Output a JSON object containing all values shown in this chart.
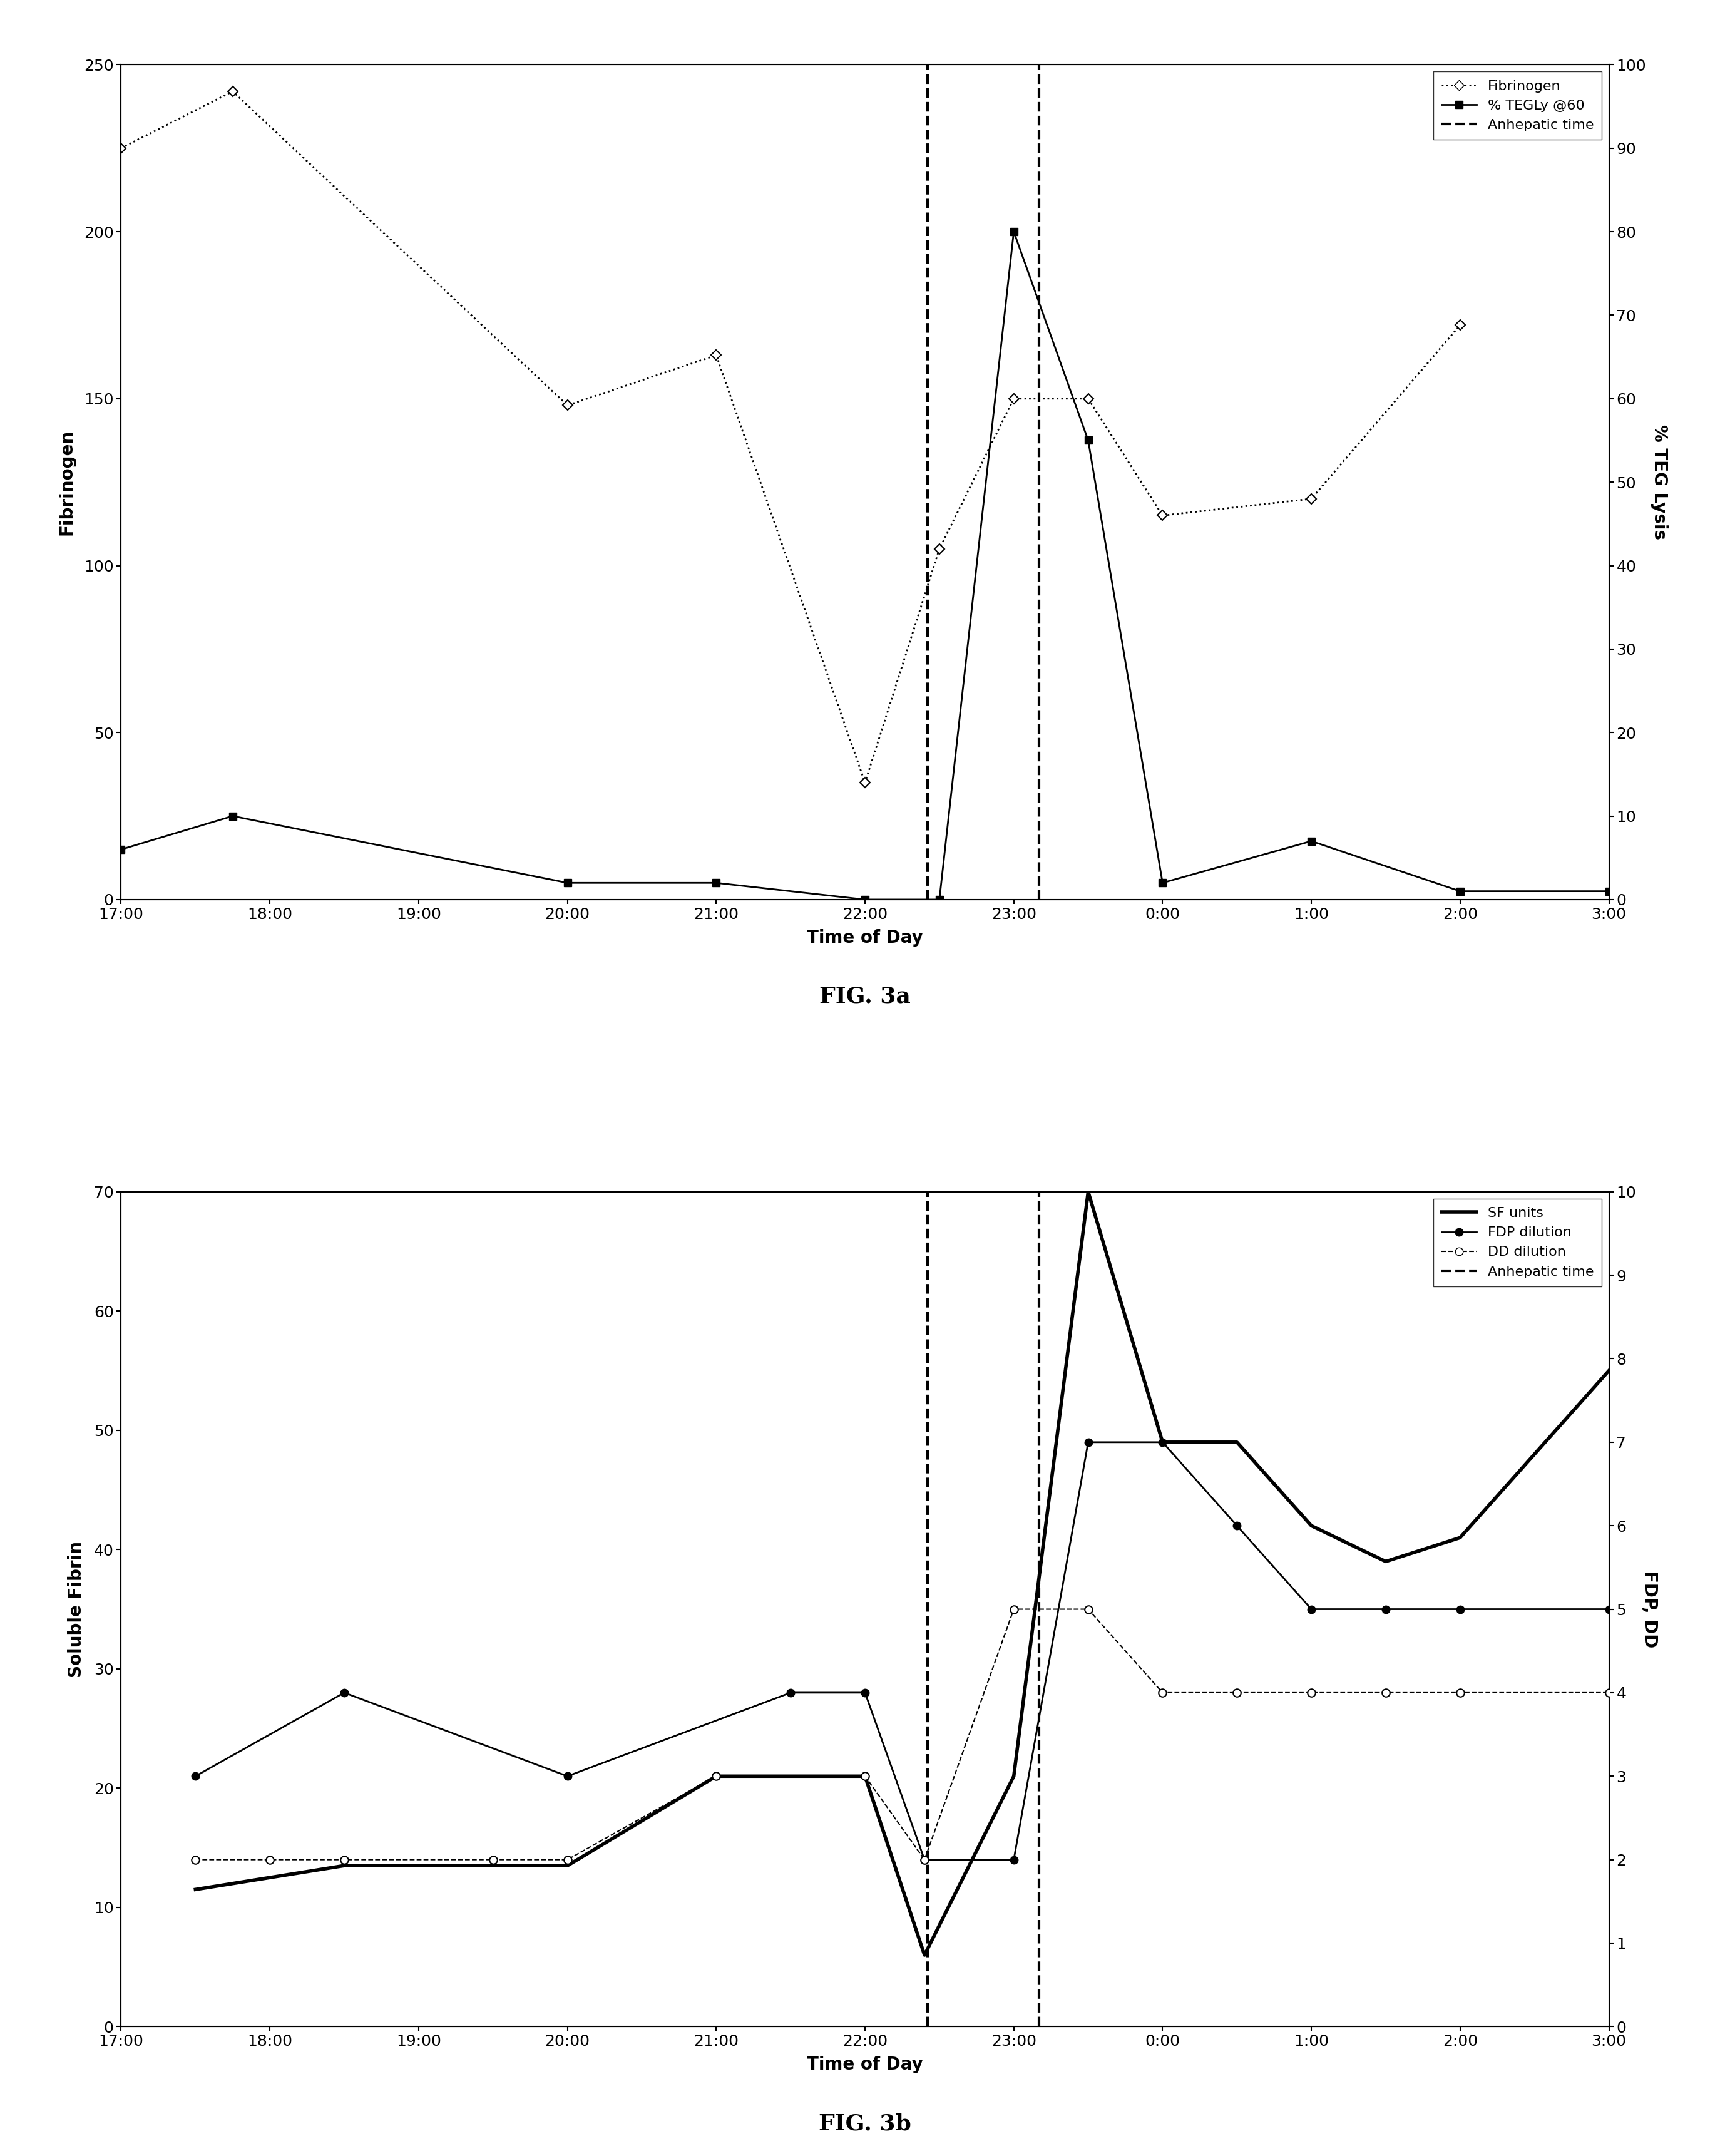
{
  "fig3a": {
    "xlabel": "Time of Day",
    "ylabel_left": "Fibrinogen",
    "ylabel_right": "% TEG Lysis",
    "ylim_left": [
      0,
      250
    ],
    "ylim_right": [
      0,
      100
    ],
    "yticks_left": [
      0,
      50,
      100,
      150,
      200,
      250
    ],
    "yticks_right": [
      0,
      10,
      20,
      30,
      40,
      50,
      60,
      70,
      80,
      90,
      100
    ],
    "x_times": [
      17.0,
      17.75,
      18.5,
      20.0,
      21.0,
      22.0,
      22.5,
      23.0,
      23.5,
      24.0,
      25.0,
      26.0,
      27.0
    ],
    "fibrinogen": [
      225,
      242,
      null,
      148,
      163,
      35,
      105,
      150,
      150,
      115,
      120,
      172,
      null
    ],
    "teg_lysis": [
      6,
      10,
      null,
      2,
      2,
      0,
      0,
      80,
      55,
      2,
      7,
      1,
      1
    ],
    "anhepatic_times": [
      22.42,
      23.17
    ],
    "xtick_labels": [
      "17:00",
      "18:00",
      "19:00",
      "20:00",
      "21:00",
      "22:00",
      "23:00",
      "0:00",
      "1:00",
      "2:00",
      "3:00"
    ],
    "xtick_positions": [
      17.0,
      18.0,
      19.0,
      20.0,
      21.0,
      22.0,
      23.0,
      24.0,
      25.0,
      26.0,
      27.0
    ],
    "legend_labels": [
      "Fibrinogen",
      "% TEGLy @60",
      "Anhepatic time"
    ]
  },
  "fig3b": {
    "xlabel": "Time of Day",
    "ylabel_left": "Soluble Fibrin",
    "ylabel_right": "FDP, DD",
    "ylim_left": [
      0,
      70
    ],
    "ylim_right": [
      0,
      10
    ],
    "yticks_left": [
      0,
      10,
      20,
      30,
      40,
      50,
      60,
      70
    ],
    "yticks_right": [
      0,
      1,
      2,
      3,
      4,
      5,
      6,
      7,
      8,
      9,
      10
    ],
    "x_times": [
      17.5,
      18.0,
      18.5,
      19.5,
      20.0,
      21.0,
      21.5,
      22.0,
      22.4,
      23.0,
      23.5,
      24.0,
      24.5,
      25.0,
      25.5,
      26.0,
      27.0
    ],
    "sf_units": [
      11.5,
      null,
      13.5,
      null,
      13.5,
      21,
      null,
      21,
      6,
      21,
      70,
      49,
      49,
      42,
      39,
      41,
      55
    ],
    "fdp_dilution": [
      3,
      null,
      4,
      null,
      3,
      null,
      4,
      4,
      2,
      2,
      7,
      7,
      6,
      5,
      5,
      5,
      5
    ],
    "dd_dilution": [
      2,
      2,
      2,
      2,
      2,
      3,
      null,
      3,
      2,
      5,
      5,
      4,
      4,
      4,
      4,
      4,
      4
    ],
    "anhepatic_times": [
      22.42,
      23.17
    ],
    "xtick_labels": [
      "17:00",
      "18:00",
      "19:00",
      "20:00",
      "21:00",
      "22:00",
      "23:00",
      "0:00",
      "1:00",
      "2:00",
      "3:00"
    ],
    "xtick_positions": [
      17.0,
      18.0,
      19.0,
      20.0,
      21.0,
      22.0,
      23.0,
      24.0,
      25.0,
      26.0,
      27.0
    ],
    "legend_labels": [
      "SF units",
      "FDP dilution",
      "DD dilution",
      "Anhepatic time"
    ]
  },
  "fig3a_label": "FIG. 3a",
  "fig3b_label": "FIG. 3b",
  "background_color": "#ffffff"
}
